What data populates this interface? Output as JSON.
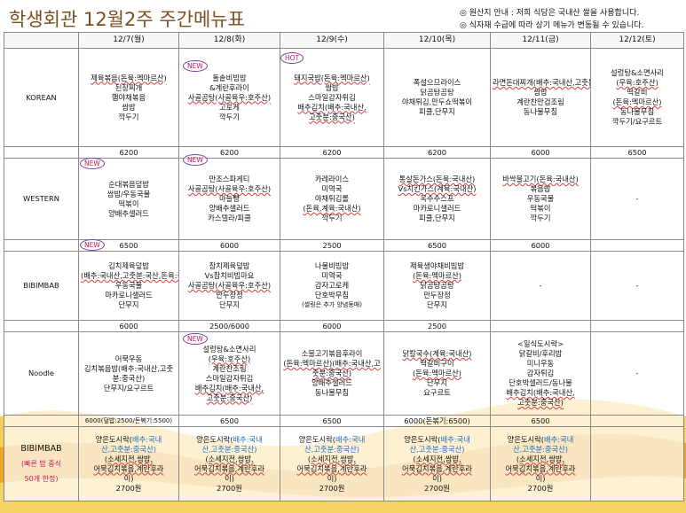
{
  "title": "학생회관 12월2주 주간메뉴표",
  "notice": [
    "◎ 원산지 안내 : 저희 식당은 국내산 쌀을 사용합니다.",
    "◎ 식자재 수급에 따라 상기 메뉴가 변동될 수 있습니다."
  ],
  "days": [
    "12/7(월)",
    "12/8(화)",
    "12/9(수)",
    "12/10(목)",
    "12/11(금)",
    "12/12(토)"
  ],
  "badges": {
    "new": "NEW",
    "hot": "HOT"
  },
  "dash": "-",
  "categories": {
    "korean": "KOREAN",
    "western": "WESTERN",
    "bibim": "BIBIMBAB",
    "noodle": "Noodle",
    "special": "BIBIMBAB",
    "special_sub1": "(빠른 밥 중식",
    "special_sub2": "50개 한정)"
  },
  "korean": [
    [
      "제육볶음(돈육:멕마르산)",
      "된장찌개",
      "햄야채볶음",
      "쌈밥",
      "깍두기"
    ],
    [
      "돌솥비빔밥",
      "&계란후라이",
      "사골곰탕(사골육우:호주산)",
      "고로케",
      "깍두기"
    ],
    [
      "돼지국밥(돈육:멕마르산)",
      "쌈밥",
      "스마일감자튀김",
      "배추김치(배추:국내산,",
      "고춧분:중국산)"
    ],
    [
      "폭설으므라이스",
      "닭곰탕곰탕",
      "야채튀김,만두쇼떡볶이",
      "피클,단무지"
    ],
    [
      "라면돈대찌개(배추:국내산,고춧분:중국산)",
      "쌈밥",
      "계란찬만검조림",
      "동나물무침"
    ],
    [
      "설렁탕&소면사리",
      "(우육:호주산)",
      "떡갈비",
      "(돈육:멕마르산)",
      "동나물무침",
      "깍두기/요구르트"
    ]
  ],
  "korean_price": [
    "6200",
    "6200",
    "6200",
    "6200",
    "6000",
    "6500"
  ],
  "western": [
    [
      "순대볶음덮밥",
      "쌈밥/우동국물",
      "떡볶이",
      "양배추샐러드"
    ],
    [
      "만조스파게티",
      "사골곰탕(사골육우:호주산)",
      "마늘빵",
      "양배추샐러드",
      "카스텔라/피클"
    ],
    [
      "카레라이스",
      "미역국",
      "야채튀김롤",
      "(돈육,계육:국내산)",
      "깍두기"
    ],
    [
      "통살돈가스(돈육:국내산)",
      "Vs치킨가스(계육:국내산)",
      "옥수수스프",
      "마카로니샐러드",
      "피클,단무지"
    ],
    [
      "바싹불고기(돈육:국내산)",
      "볶음밥",
      "우동국물",
      "떡볶이",
      "깍두기"
    ],
    []
  ],
  "western_price": [
    "6500",
    "6000",
    "2500",
    "6500",
    "6000",
    ""
  ],
  "bibim": [
    [
      "김치제육덮밥",
      "(배추:국내산,고춧분:국산,돈육:국내산)",
      "우동국물",
      "마카로니샐러드",
      "단무지"
    ],
    [
      "참치제육덮밥",
      "Vs참치비빔마요",
      "사골곰탕(사골육우:호주산)",
      "만두장정",
      "단무지"
    ],
    [
      "나물비빔밥",
      "미역국",
      "감자고로케",
      "단호박무침",
      "(셀링은 추가 양념동매)"
    ],
    [
      "제육생야채비빔밥",
      "(돈육:멕마르산)",
      "닭곰탕곰탕",
      "만두장정",
      "단무지"
    ],
    [],
    []
  ],
  "bibim_price": [
    "6000",
    "2500/6000",
    "6000",
    "2500",
    "",
    ""
  ],
  "noodle": [
    [
      "어묵우동",
      "김치볶음밥(배추:국내산,고춧분:중국산)",
      "단무지/요구르트"
    ],
    [
      "설렁탕&소면사리",
      "(우육:호주산)",
      "계란찬조림",
      "스마일감자튀김",
      "배추김치(배추:국내산,",
      "고춧분:중국산)"
    ],
    [
      "소불고기볶음후라이",
      "(돈육:멕마르산)(배추:국내산,고춧분:중국산)",
      "양배추샐러드",
      "동나물무침"
    ],
    [
      "닭칼국수(계육:국내산)",
      "떡갈비구이",
      "(돈육:멕마르산)",
      "단무지",
      "요구르트"
    ],
    [
      "<일식도시락>",
      "닭갈비/후리밥",
      "미니우동",
      "감자튀김",
      "단호박샐러드/동나물",
      "배추김치(배추:국내산,",
      "고춧분:중국산)"
    ],
    []
  ],
  "noodle_price": [
    "6000(덮밥:2500/돈볶기:5500)",
    "6500",
    "6500",
    "6000(돈볶기:6500)",
    "6500",
    ""
  ],
  "special": {
    "line1_a": "양은도시락(",
    "line1_b": "배추:국내",
    "line2": "산,고춧분:중국산)",
    "line3": "(소세지전,쌈밥,",
    "line4": "어묵김치볶음,계란후라",
    "line5": "이)",
    "price": "2700원"
  }
}
